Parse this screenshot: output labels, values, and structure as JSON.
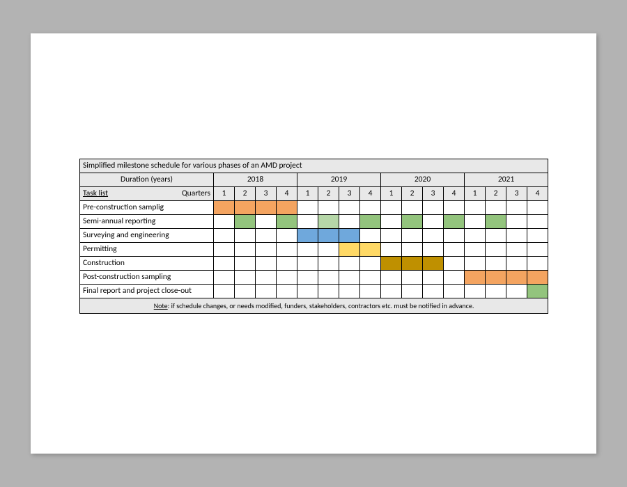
{
  "schedule": {
    "type": "gantt",
    "title": "Simplified milestone schedule for various phases of an AMD project",
    "duration_label": "Duration (years)",
    "tasklist_label_left": "Task list",
    "tasklist_label_right": "Quarters",
    "years": [
      "2018",
      "2019",
      "2020",
      "2021"
    ],
    "quarters_per_year": 4,
    "quarter_labels": [
      "1",
      "2",
      "3",
      "4",
      "1",
      "2",
      "3",
      "4",
      "1",
      "2",
      "3",
      "4",
      "1",
      "2",
      "3",
      "4"
    ],
    "colors": {
      "header_bg": "#e8e8e8",
      "cell_bg": "#ffffff",
      "border": "#000000",
      "orange": "#f4a460",
      "green": "#93c47d",
      "green_light": "#b6d7a8",
      "blue": "#6fa8dc",
      "yellow": "#ffd966",
      "brown": "#bf9000"
    },
    "font": {
      "family": "Calibri",
      "size_body": 11.5,
      "size_note": 10
    },
    "tasks": [
      {
        "name": "Pre-construction samplig",
        "cells": [
          "orange",
          "orange",
          "orange",
          "orange",
          "",
          "",
          "",
          "",
          "",
          "",
          "",
          "",
          "",
          "",
          "",
          ""
        ]
      },
      {
        "name": "Semi-annual reporting",
        "cells": [
          "",
          "green",
          "",
          "green",
          "",
          "green_light",
          "",
          "green",
          "",
          "green",
          "",
          "green",
          "",
          "green",
          "",
          ""
        ]
      },
      {
        "name": "Surveying and engineering",
        "cells": [
          "",
          "",
          "",
          "",
          "blue",
          "blue",
          "blue",
          "",
          "",
          "",
          "",
          "",
          "",
          "",
          "",
          ""
        ]
      },
      {
        "name": "Permitting",
        "cells": [
          "",
          "",
          "",
          "",
          "",
          "",
          "yellow",
          "yellow",
          "",
          "",
          "",
          "",
          "",
          "",
          "",
          ""
        ]
      },
      {
        "name": "Construction",
        "cells": [
          "",
          "",
          "",
          "",
          "",
          "",
          "",
          "",
          "brown",
          "brown",
          "brown",
          "",
          "",
          "",
          "",
          ""
        ]
      },
      {
        "name": "Post-construction sampling",
        "cells": [
          "",
          "",
          "",
          "",
          "",
          "",
          "",
          "",
          "",
          "",
          "",
          "",
          "orange",
          "orange",
          "orange",
          "orange"
        ]
      },
      {
        "name": "Final report and project close-out",
        "cells": [
          "",
          "",
          "",
          "",
          "",
          "",
          "",
          "",
          "",
          "",
          "",
          "",
          "",
          "",
          "",
          "green"
        ]
      }
    ],
    "note_label": "Note",
    "note_text": ": if schedule changes, or needs modified, funders, stakeholders, contractors etc. must be notified in advance."
  }
}
